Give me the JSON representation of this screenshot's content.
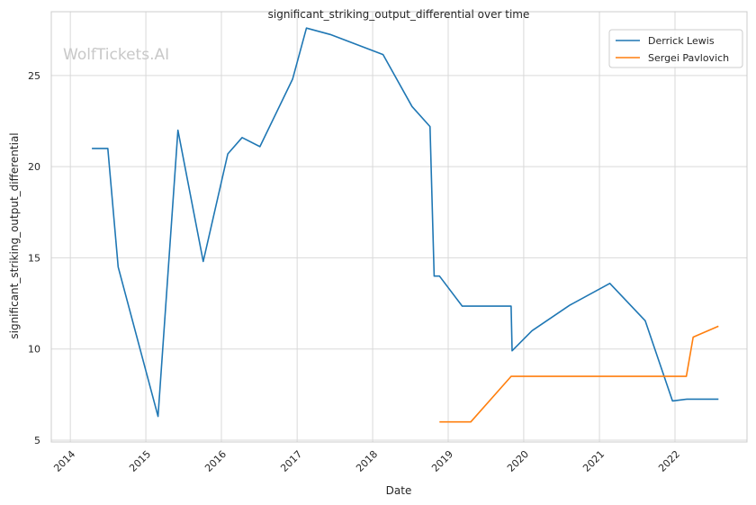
{
  "chart_data": {
    "type": "line",
    "title": "significant_striking_output_differential over time",
    "xlabel": "Date",
    "ylabel": "significant_striking_output_differential",
    "x_ticks": [
      "2014",
      "2015",
      "2016",
      "2017",
      "2018",
      "2019",
      "2020",
      "2021",
      "2022"
    ],
    "y_ticks": [
      "5",
      "10",
      "15",
      "20",
      "25"
    ],
    "xlim": [
      "2013-10-01",
      "2022-12-15"
    ],
    "ylim": [
      4.9,
      28.5
    ],
    "grid": true,
    "legend_position": "top-right",
    "watermark": "WolfTickets.AI",
    "series": [
      {
        "name": "Derrick Lewis",
        "color": "#1f77b4",
        "points": [
          [
            "2014-04-15",
            21.0
          ],
          [
            "2014-07-01",
            21.0
          ],
          [
            "2014-08-20",
            14.5
          ],
          [
            "2015-03-01",
            6.3
          ],
          [
            "2015-06-05",
            22.0
          ],
          [
            "2015-10-05",
            14.8
          ],
          [
            "2016-02-01",
            20.7
          ],
          [
            "2016-04-10",
            21.6
          ],
          [
            "2016-07-05",
            21.1
          ],
          [
            "2016-12-10",
            24.8
          ],
          [
            "2017-02-15",
            27.6
          ],
          [
            "2017-06-10",
            27.25
          ],
          [
            "2018-02-20",
            26.15
          ],
          [
            "2018-07-10",
            23.3
          ],
          [
            "2018-10-05",
            22.2
          ],
          [
            "2018-10-25",
            14.0
          ],
          [
            "2018-11-20",
            14.0
          ],
          [
            "2019-03-10",
            12.35
          ],
          [
            "2019-11-01",
            12.35
          ],
          [
            "2019-11-06",
            9.9
          ],
          [
            "2020-02-10",
            11.0
          ],
          [
            "2020-08-10",
            12.4
          ],
          [
            "2021-02-20",
            13.6
          ],
          [
            "2021-08-10",
            11.55
          ],
          [
            "2021-12-20",
            7.15
          ],
          [
            "2022-03-01",
            7.25
          ],
          [
            "2022-07-30",
            7.25
          ]
        ]
      },
      {
        "name": "Sergei Pavlovich",
        "color": "#ff7f0e",
        "points": [
          [
            "2018-11-20",
            6.0
          ],
          [
            "2019-04-20",
            6.0
          ],
          [
            "2019-11-01",
            8.5
          ],
          [
            "2022-02-25",
            8.5
          ],
          [
            "2022-03-30",
            10.65
          ],
          [
            "2022-07-30",
            11.25
          ]
        ]
      }
    ]
  }
}
